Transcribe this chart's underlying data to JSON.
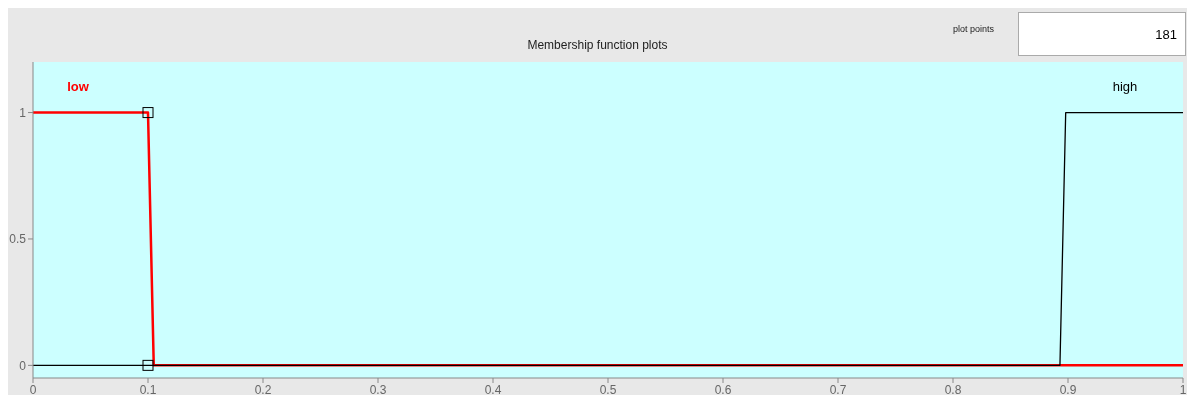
{
  "chart_data": {
    "type": "line",
    "title": "Membership function plots",
    "annotations": [
      "plot points",
      "181"
    ],
    "series": [
      {
        "name": "low",
        "color": "#ff0000",
        "x": [
          0,
          0.1,
          0.105,
          1
        ],
        "values": [
          1,
          1,
          0,
          0
        ]
      },
      {
        "name": "high",
        "color": "#000000",
        "x": [
          0,
          0.893,
          0.898,
          1
        ],
        "values": [
          0,
          0,
          1,
          1
        ]
      },
      {
        "type": "scatter",
        "color": "#000000",
        "marker": "square",
        "x": [
          0.1,
          0.1
        ],
        "values": [
          1,
          0
        ]
      }
    ],
    "xlim": [
      0,
      1
    ],
    "xticks": [
      0,
      0.1,
      0.2,
      0.3,
      0.4,
      0.5,
      0.6,
      0.7,
      0.8,
      0.9,
      1
    ],
    "ylim": [
      -0.05,
      1.2
    ],
    "yticks": [
      0,
      0.5,
      1
    ],
    "grid": false,
    "marker": "none",
    "line_style": "solid"
  }
}
